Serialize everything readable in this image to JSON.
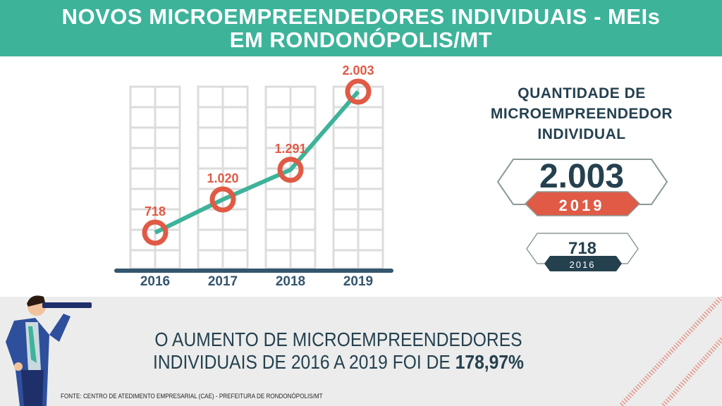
{
  "header": {
    "title_line1": "NOVOS MICROEMPREENDEDORES INDIVIDUAIS - MEIs",
    "title_line2": "EM RONDONÓPOLIS/MT"
  },
  "chart_data": {
    "type": "line",
    "categories": [
      "2016",
      "2017",
      "2018",
      "2019"
    ],
    "values": [
      718,
      1020,
      1291,
      2003
    ],
    "labels": [
      "718",
      "1.020",
      "1.291",
      "2.003"
    ],
    "title": "",
    "xlabel": "",
    "ylabel": "",
    "grid": false,
    "colors": {
      "line": "#3db39a",
      "marker": "#e05a45",
      "axis": "#34566e",
      "buildings": "#dcdcdc"
    }
  },
  "summary": {
    "title": [
      "QUANTIDADE DE",
      "MICROEMPREENDEDOR",
      "INDIVIDUAL"
    ],
    "main_value": "2.003",
    "main_year": "2019",
    "secondary_value": "718",
    "secondary_year": "2016"
  },
  "message": {
    "text": "O AUMENTO DE MICROEMPREENDEDORES INDIVIDUAIS DE 2016 A 2019 FOI DE",
    "line1": "O AUMENTO DE MICROEMPREENDEDORES",
    "line2": "INDIVIDUAIS DE 2016 A 2019 FOI DE",
    "highlight": "178,97%"
  },
  "source": "FONTE: CENTRO DE ATEDIMENTO EMPRESARIAL (CAE) - PREFEITURA DE RONDONÓPOLIS/MT",
  "colors": {
    "teal": "#3db39a",
    "red": "#e05a45",
    "navy": "#25414f"
  }
}
